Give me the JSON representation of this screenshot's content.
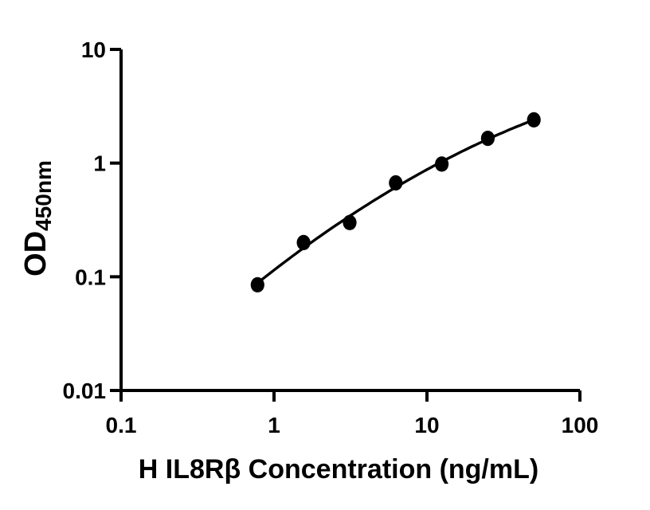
{
  "chart_data": {
    "type": "scatter",
    "title": "",
    "xlabel": "H IL8Rβ Concentration (ng/mL)",
    "ylabel_main": "OD",
    "ylabel_sub": "450nm",
    "x_scale": "log",
    "y_scale": "log",
    "xlim": [
      0.1,
      100
    ],
    "ylim": [
      0.01,
      10
    ],
    "x_ticks": [
      0.1,
      1,
      10,
      100
    ],
    "x_tick_labels": [
      "0.1",
      "1",
      "10",
      "100"
    ],
    "y_ticks": [
      0.01,
      0.1,
      1,
      10
    ],
    "y_tick_labels": [
      "0.01",
      "0.1",
      "1",
      "10"
    ],
    "grid": false,
    "legend": "none",
    "show_fit_curve": true,
    "series": [
      {
        "x": [
          0.78,
          1.56,
          3.125,
          6.25,
          12.5,
          25,
          50
        ],
        "y": [
          0.085,
          0.2,
          0.3,
          0.67,
          0.98,
          1.65,
          2.4
        ],
        "marker": "filled-circle"
      }
    ],
    "colors": {
      "foreground": "#000000",
      "background": "#ffffff"
    }
  }
}
